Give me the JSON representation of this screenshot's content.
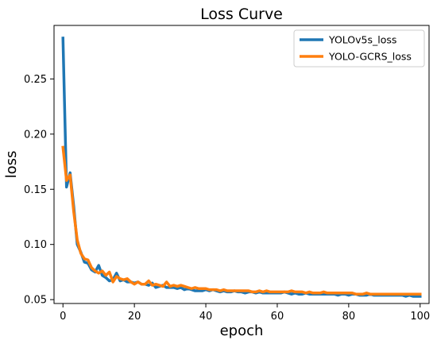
{
  "chart_data": {
    "type": "line",
    "title": "Loss Curve",
    "xlabel": "epoch",
    "ylabel": "loss",
    "xlim": [
      -2.5,
      102.5
    ],
    "ylim": [
      0.0465,
      0.2985
    ],
    "xticks": [
      0,
      20,
      40,
      60,
      80,
      100
    ],
    "yticks": [
      0.05,
      0.1,
      0.15,
      0.2,
      0.25
    ],
    "ytick_labels": [
      "0.05",
      "0.10",
      "0.15",
      "0.20",
      "0.25"
    ],
    "grid": false,
    "legend_position": "upper right",
    "x": [
      0,
      1,
      2,
      3,
      4,
      5,
      6,
      7,
      8,
      9,
      10,
      11,
      12,
      13,
      14,
      15,
      16,
      17,
      18,
      19,
      20,
      21,
      22,
      23,
      24,
      25,
      26,
      27,
      28,
      29,
      30,
      31,
      32,
      33,
      34,
      35,
      36,
      37,
      38,
      39,
      40,
      41,
      42,
      43,
      44,
      45,
      46,
      47,
      48,
      49,
      50,
      51,
      52,
      53,
      54,
      55,
      56,
      57,
      58,
      59,
      60,
      61,
      62,
      63,
      64,
      65,
      66,
      67,
      68,
      69,
      70,
      71,
      72,
      73,
      74,
      75,
      76,
      77,
      78,
      79,
      80,
      81,
      82,
      83,
      84,
      85,
      86,
      87,
      88,
      89,
      90,
      91,
      92,
      93,
      94,
      95,
      96,
      97,
      98,
      99,
      100
    ],
    "series": [
      {
        "name": "YOLOv5s_loss",
        "color": "#1f77b4",
        "values": [
          0.287,
          0.152,
          0.165,
          0.135,
          0.1,
          0.093,
          0.084,
          0.083,
          0.077,
          0.075,
          0.081,
          0.072,
          0.07,
          0.067,
          0.068,
          0.074,
          0.067,
          0.068,
          0.066,
          0.066,
          0.065,
          0.066,
          0.064,
          0.064,
          0.063,
          0.065,
          0.061,
          0.062,
          0.063,
          0.061,
          0.061,
          0.061,
          0.06,
          0.061,
          0.059,
          0.06,
          0.059,
          0.058,
          0.058,
          0.058,
          0.059,
          0.058,
          0.059,
          0.058,
          0.057,
          0.058,
          0.057,
          0.057,
          0.058,
          0.057,
          0.057,
          0.056,
          0.057,
          0.057,
          0.056,
          0.057,
          0.056,
          0.056,
          0.056,
          0.056,
          0.056,
          0.056,
          0.057,
          0.056,
          0.055,
          0.056,
          0.055,
          0.055,
          0.056,
          0.055,
          0.055,
          0.055,
          0.055,
          0.055,
          0.055,
          0.055,
          0.055,
          0.054,
          0.055,
          0.055,
          0.054,
          0.055,
          0.055,
          0.054,
          0.054,
          0.054,
          0.055,
          0.054,
          0.054,
          0.054,
          0.054,
          0.054,
          0.054,
          0.054,
          0.054,
          0.054,
          0.053,
          0.054,
          0.053,
          0.053,
          0.053
        ]
      },
      {
        "name": "YOLO-GCRS_loss",
        "color": "#ff7f0e",
        "values": [
          0.188,
          0.158,
          0.163,
          0.13,
          0.104,
          0.092,
          0.087,
          0.086,
          0.079,
          0.076,
          0.074,
          0.076,
          0.072,
          0.075,
          0.066,
          0.071,
          0.069,
          0.068,
          0.069,
          0.066,
          0.064,
          0.066,
          0.064,
          0.064,
          0.067,
          0.063,
          0.064,
          0.063,
          0.062,
          0.066,
          0.062,
          0.063,
          0.062,
          0.063,
          0.062,
          0.061,
          0.06,
          0.061,
          0.06,
          0.06,
          0.06,
          0.059,
          0.059,
          0.059,
          0.058,
          0.059,
          0.058,
          0.058,
          0.058,
          0.058,
          0.058,
          0.058,
          0.058,
          0.057,
          0.057,
          0.058,
          0.057,
          0.058,
          0.057,
          0.057,
          0.057,
          0.057,
          0.057,
          0.057,
          0.058,
          0.057,
          0.057,
          0.057,
          0.056,
          0.057,
          0.056,
          0.056,
          0.056,
          0.057,
          0.056,
          0.056,
          0.056,
          0.056,
          0.056,
          0.056,
          0.056,
          0.056,
          0.055,
          0.055,
          0.055,
          0.056,
          0.055,
          0.055,
          0.055,
          0.055,
          0.055,
          0.055,
          0.055,
          0.055,
          0.055,
          0.055,
          0.055,
          0.055,
          0.055,
          0.055,
          0.055
        ]
      }
    ]
  }
}
